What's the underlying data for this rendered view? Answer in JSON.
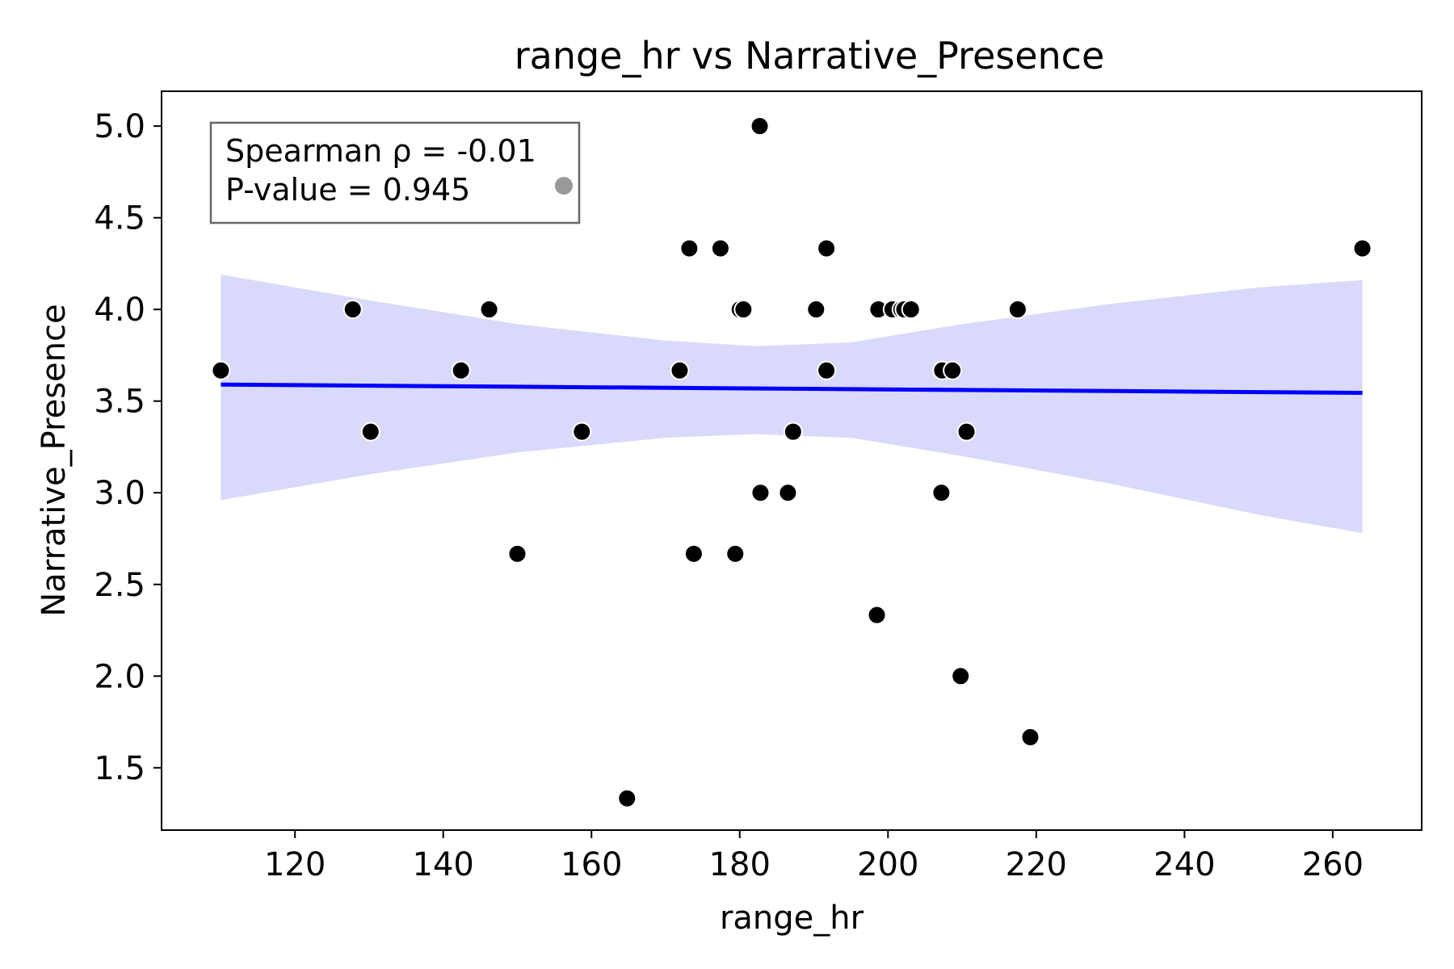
{
  "chart_data": {
    "type": "scatter",
    "title": "range_hr vs Narrative_Presence",
    "xlabel": "range_hr",
    "ylabel": "Narrative_Presence",
    "xlim": [
      102,
      272
    ],
    "ylim": [
      1.16,
      5.19
    ],
    "xticks": [
      120,
      140,
      160,
      180,
      200,
      220,
      240,
      260
    ],
    "yticks": [
      1.5,
      2.0,
      2.5,
      3.0,
      3.5,
      4.0,
      4.5,
      5.0
    ],
    "grid": false,
    "points": [
      {
        "x": 110,
        "y": 3.667
      },
      {
        "x": 127.8,
        "y": 4.0
      },
      {
        "x": 130.2,
        "y": 3.333
      },
      {
        "x": 142.4,
        "y": 3.667
      },
      {
        "x": 146.2,
        "y": 4.0
      },
      {
        "x": 150.0,
        "y": 2.667
      },
      {
        "x": 158.7,
        "y": 3.333
      },
      {
        "x": 164.8,
        "y": 1.333
      },
      {
        "x": 171.9,
        "y": 3.667
      },
      {
        "x": 173.2,
        "y": 4.333
      },
      {
        "x": 173.8,
        "y": 2.667
      },
      {
        "x": 177.4,
        "y": 4.333
      },
      {
        "x": 179.4,
        "y": 2.667
      },
      {
        "x": 180.0,
        "y": 4.0
      },
      {
        "x": 180.5,
        "y": 4.0
      },
      {
        "x": 182.7,
        "y": 5.0
      },
      {
        "x": 182.8,
        "y": 3.0
      },
      {
        "x": 186.5,
        "y": 3.0
      },
      {
        "x": 187.2,
        "y": 3.333
      },
      {
        "x": 190.3,
        "y": 4.0
      },
      {
        "x": 191.7,
        "y": 4.333
      },
      {
        "x": 191.7,
        "y": 3.667
      },
      {
        "x": 198.5,
        "y": 2.333
      },
      {
        "x": 198.7,
        "y": 4.0
      },
      {
        "x": 200.6,
        "y": 4.0
      },
      {
        "x": 201.8,
        "y": 4.0
      },
      {
        "x": 202.2,
        "y": 4.0
      },
      {
        "x": 203.1,
        "y": 4.0
      },
      {
        "x": 207.2,
        "y": 3.0
      },
      {
        "x": 207.3,
        "y": 3.667
      },
      {
        "x": 208.7,
        "y": 3.667
      },
      {
        "x": 209.8,
        "y": 2.0
      },
      {
        "x": 210.6,
        "y": 3.333
      },
      {
        "x": 217.5,
        "y": 4.0
      },
      {
        "x": 219.2,
        "y": 1.667
      },
      {
        "x": 264.0,
        "y": 4.333
      }
    ],
    "regression_line": {
      "x": [
        110,
        264
      ],
      "y": [
        3.59,
        3.545
      ]
    },
    "confidence_band": {
      "x": [
        110,
        130,
        150,
        170,
        182,
        195,
        210,
        230,
        250,
        264
      ],
      "lower": [
        2.96,
        3.1,
        3.22,
        3.3,
        3.32,
        3.3,
        3.2,
        3.05,
        2.88,
        2.78
      ],
      "upper": [
        4.19,
        4.05,
        3.92,
        3.83,
        3.8,
        3.82,
        3.92,
        4.03,
        4.12,
        4.16
      ]
    },
    "annotation": {
      "lines": [
        "Spearman ρ = -0.01",
        "P-value = 0.945"
      ]
    },
    "colors": {
      "points": "#000000",
      "point_edge": "#ffffff",
      "line": "#0000ff",
      "band": "#d9d9fb",
      "annotation_border": "#666666",
      "annotation_marker": "#999999"
    }
  }
}
